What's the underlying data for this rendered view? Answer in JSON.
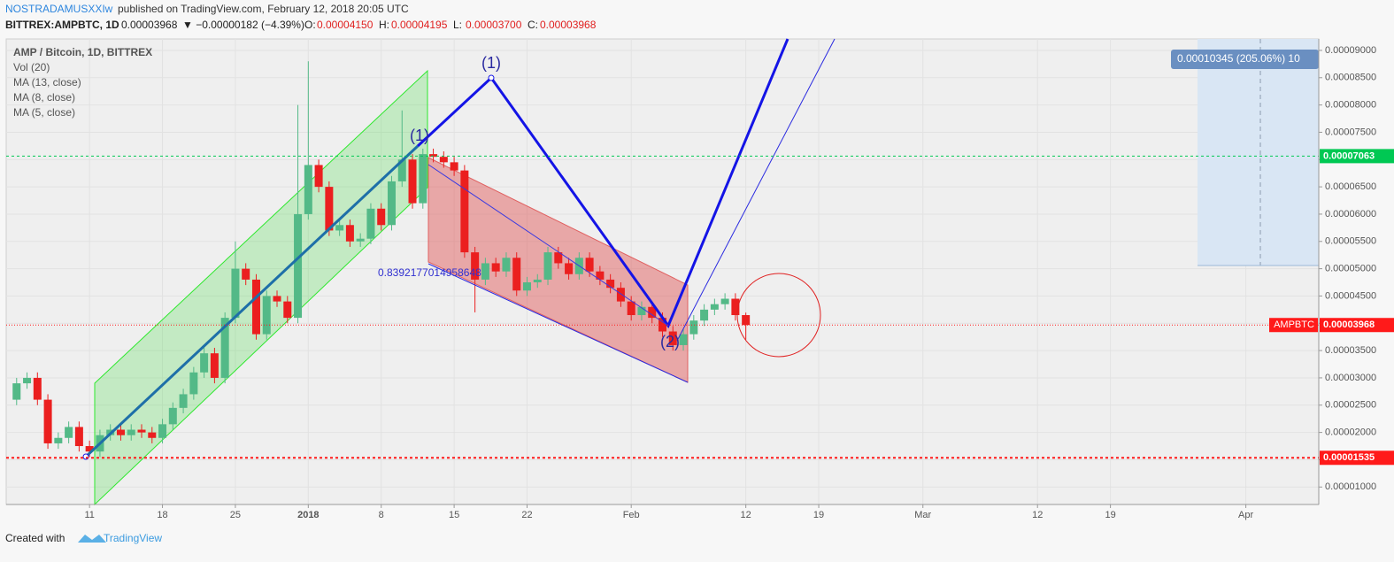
{
  "chart_data": {
    "type": "candlestick",
    "header": {
      "author": "NOSTRADAMUSXXIw",
      "published": "published on TradingView.com, February 12, 2018 20:05 UTC",
      "symbol": "BITTREX:AMPBTC, 1D",
      "last": "0.00003968",
      "change": "▼ −0.00000182 (−4.39%)",
      "ohlc": [
        {
          "label": "O:",
          "value": "0.00004150"
        },
        {
          "label": "H:",
          "value": "0.00004195"
        },
        {
          "label": "L:",
          "value": "0.00003700"
        },
        {
          "label": "C:",
          "value": "0.00003968"
        }
      ]
    },
    "legend": [
      "AMP / Bitcoin, 1D, BITTREX",
      "Vol (20)",
      "MA (13, close)",
      "MA (8, close)",
      "MA (5, close)"
    ],
    "annotations": {
      "wave_labels": [
        "(1)",
        "(1)",
        "(2)"
      ],
      "fib_ratio": "0.8392177014958648",
      "measure": "0.00010345 (205.06%) 10"
    },
    "footer": {
      "text": "Created with",
      "brand": "TradingView"
    },
    "up_color": "#53b987",
    "down_color": "#eb1f1f",
    "grid": true,
    "x": [
      "2017-12-04",
      "2017-12-05",
      "2017-12-06",
      "2017-12-07",
      "2017-12-08",
      "2017-12-09",
      "2017-12-10",
      "2017-12-11",
      "2017-12-12",
      "2017-12-13",
      "2017-12-14",
      "2017-12-15",
      "2017-12-16",
      "2017-12-17",
      "2017-12-18",
      "2017-12-19",
      "2017-12-20",
      "2017-12-21",
      "2017-12-22",
      "2017-12-23",
      "2017-12-24",
      "2017-12-25",
      "2017-12-26",
      "2017-12-27",
      "2017-12-28",
      "2017-12-29",
      "2017-12-30",
      "2017-12-31",
      "2018-01-01",
      "2018-01-02",
      "2018-01-03",
      "2018-01-04",
      "2018-01-05",
      "2018-01-06",
      "2018-01-07",
      "2018-01-08",
      "2018-01-09",
      "2018-01-10",
      "2018-01-11",
      "2018-01-12",
      "2018-01-13",
      "2018-01-14",
      "2018-01-15",
      "2018-01-16",
      "2018-01-17",
      "2018-01-18",
      "2018-01-19",
      "2018-01-20",
      "2018-01-21",
      "2018-01-22",
      "2018-01-23",
      "2018-01-24",
      "2018-01-25",
      "2018-01-26",
      "2018-01-27",
      "2018-01-28",
      "2018-01-29",
      "2018-01-30",
      "2018-01-31",
      "2018-02-01",
      "2018-02-02",
      "2018-02-03",
      "2018-02-04",
      "2018-02-05",
      "2018-02-06",
      "2018-02-07",
      "2018-02-08",
      "2018-02-09",
      "2018-02-10",
      "2018-02-11",
      "2018-02-12"
    ],
    "open": [
      2.6e-05,
      2.9e-05,
      3e-05,
      2.6e-05,
      1.8e-05,
      1.9e-05,
      2.1e-05,
      1.75e-05,
      1.65e-05,
      1.95e-05,
      2.05e-05,
      1.95e-05,
      2.05e-05,
      2e-05,
      1.9e-05,
      2.15e-05,
      2.45e-05,
      2.7e-05,
      3.1e-05,
      3.45e-05,
      3e-05,
      4.1e-05,
      5e-05,
      4.8e-05,
      3.8e-05,
      4.5e-05,
      4.4e-05,
      4.1e-05,
      6e-05,
      6.9e-05,
      6.5e-05,
      5.7e-05,
      5.8e-05,
      5.5e-05,
      5.55e-05,
      6.1e-05,
      5.8e-05,
      6.6e-05,
      7e-05,
      6.2e-05,
      7.1e-05,
      7.05e-05,
      6.95e-05,
      6.8e-05,
      5.3e-05,
      4.8e-05,
      5.1e-05,
      4.95e-05,
      5.2e-05,
      4.6e-05,
      4.75e-05,
      4.8e-05,
      5.3e-05,
      5.1e-05,
      4.9e-05,
      5.2e-05,
      4.95e-05,
      4.8e-05,
      4.65e-05,
      4.4e-05,
      4.15e-05,
      4.3e-05,
      4.1e-05,
      3.85e-05,
      3.6e-05,
      3.8e-05,
      4.05e-05,
      4.25e-05,
      4.35e-05,
      4.45e-05,
      4.15e-05
    ],
    "high": [
      3e-05,
      3.1e-05,
      3.1e-05,
      2.7e-05,
      2e-05,
      2.2e-05,
      2.2e-05,
      1.85e-05,
      2.05e-05,
      2.15e-05,
      2.15e-05,
      2.15e-05,
      2.15e-05,
      2.1e-05,
      2.25e-05,
      2.55e-05,
      2.8e-05,
      3.2e-05,
      3.55e-05,
      3.55e-05,
      4.2e-05,
      5.5e-05,
      5.1e-05,
      4.9e-05,
      4.6e-05,
      4.6e-05,
      4.5e-05,
      8e-05,
      8.8e-05,
      7e-05,
      6.6e-05,
      5.9e-05,
      5.9e-05,
      5.65e-05,
      6.2e-05,
      6.2e-05,
      6.7e-05,
      7.9e-05,
      7.1e-05,
      7.2e-05,
      7.2e-05,
      7.15e-05,
      7.05e-05,
      6.9e-05,
      5.4e-05,
      5.2e-05,
      5.2e-05,
      5.3e-05,
      5.3e-05,
      4.85e-05,
      4.9e-05,
      5.4e-05,
      5.4e-05,
      5.2e-05,
      5.3e-05,
      5.3e-05,
      5.05e-05,
      4.9e-05,
      4.75e-05,
      4.5e-05,
      4.4e-05,
      4.4e-05,
      4.2e-05,
      3.95e-05,
      3.9e-05,
      4.15e-05,
      4.35e-05,
      4.45e-05,
      4.55e-05,
      4.55e-05,
      4.195e-05
    ],
    "low": [
      2.5e-05,
      2.8e-05,
      2.5e-05,
      1.7e-05,
      1.7e-05,
      1.8e-05,
      1.65e-05,
      1.55e-05,
      1.55e-05,
      1.85e-05,
      1.85e-05,
      1.85e-05,
      1.9e-05,
      1.8e-05,
      1.8e-05,
      2.05e-05,
      2.35e-05,
      2.6e-05,
      3e-05,
      2.9e-05,
      2.9e-05,
      4e-05,
      4.7e-05,
      3.7e-05,
      3.7e-05,
      4.3e-05,
      4e-05,
      4e-05,
      5.9e-05,
      6.4e-05,
      5.6e-05,
      5.6e-05,
      5.4e-05,
      5.4e-05,
      5.45e-05,
      5.7e-05,
      5.7e-05,
      6.5e-05,
      6.1e-05,
      6.1e-05,
      6.95e-05,
      6.85e-05,
      6.7e-05,
      5.2e-05,
      4.2e-05,
      4.7e-05,
      4.85e-05,
      4.85e-05,
      4.5e-05,
      4.5e-05,
      4.65e-05,
      4.7e-05,
      5e-05,
      4.8e-05,
      4.8e-05,
      4.85e-05,
      4.7e-05,
      4.55e-05,
      4.3e-05,
      4.05e-05,
      4.05e-05,
      4e-05,
      3.75e-05,
      3.5e-05,
      3.5e-05,
      3.7e-05,
      3.95e-05,
      4.15e-05,
      4.25e-05,
      4.05e-05,
      3.7e-05
    ],
    "close": [
      2.9e-05,
      3e-05,
      2.6e-05,
      1.8e-05,
      1.9e-05,
      2.1e-05,
      1.75e-05,
      1.65e-05,
      1.95e-05,
      2.05e-05,
      1.95e-05,
      2.05e-05,
      2e-05,
      1.9e-05,
      2.15e-05,
      2.45e-05,
      2.7e-05,
      3.1e-05,
      3.45e-05,
      3e-05,
      4.1e-05,
      5e-05,
      4.8e-05,
      3.8e-05,
      4.5e-05,
      4.4e-05,
      4.1e-05,
      6e-05,
      6.9e-05,
      6.5e-05,
      5.7e-05,
      5.8e-05,
      5.5e-05,
      5.55e-05,
      6.1e-05,
      5.8e-05,
      6.6e-05,
      7e-05,
      6.2e-05,
      7.1e-05,
      7.05e-05,
      6.95e-05,
      6.8e-05,
      5.3e-05,
      4.8e-05,
      5.1e-05,
      4.95e-05,
      5.2e-05,
      4.6e-05,
      4.75e-05,
      4.8e-05,
      5.3e-05,
      5.1e-05,
      4.9e-05,
      5.2e-05,
      4.95e-05,
      4.8e-05,
      4.65e-05,
      4.4e-05,
      4.15e-05,
      4.3e-05,
      4.1e-05,
      3.85e-05,
      3.6e-05,
      3.8e-05,
      4.05e-05,
      4.25e-05,
      4.35e-05,
      4.45e-05,
      4.15e-05,
      3.968e-05
    ],
    "xlim": [
      "2017-12-03",
      "2018-04-08"
    ],
    "xticks": [
      {
        "value": "2017-12-11",
        "label": "11"
      },
      {
        "value": "2017-12-18",
        "label": "18"
      },
      {
        "value": "2017-12-25",
        "label": "25"
      },
      {
        "value": "2018-01-01",
        "label": "2018"
      },
      {
        "value": "2018-01-08",
        "label": "8"
      },
      {
        "value": "2018-01-15",
        "label": "15"
      },
      {
        "value": "2018-01-22",
        "label": "22"
      },
      {
        "value": "2018-02-01",
        "label": "Feb"
      },
      {
        "value": "2018-02-12",
        "label": "12"
      },
      {
        "value": "2018-02-19",
        "label": "19"
      },
      {
        "value": "2018-03-01",
        "label": "Mar"
      },
      {
        "value": "2018-03-12",
        "label": "12"
      },
      {
        "value": "2018-03-19",
        "label": "19"
      },
      {
        "value": "2018-04-01",
        "label": "Apr"
      }
    ],
    "ylim": [
      6.8e-06,
      9.21e-05
    ],
    "yticks": [
      {
        "value": 1e-05,
        "label": "0.00001000"
      },
      {
        "value": 1.5e-05,
        "label": "0.00001500"
      },
      {
        "value": 2e-05,
        "label": "0.00002000"
      },
      {
        "value": 2.5e-05,
        "label": "0.00002500"
      },
      {
        "value": 3e-05,
        "label": "0.00003000"
      },
      {
        "value": 3.5e-05,
        "label": "0.00003500"
      },
      {
        "value": 4e-05,
        "label": "0.00004000"
      },
      {
        "value": 4.5e-05,
        "label": "0.00004500"
      },
      {
        "value": 5e-05,
        "label": "0.00005000"
      },
      {
        "value": 5.5e-05,
        "label": "0.00005500"
      },
      {
        "value": 6e-05,
        "label": "0.00006000"
      },
      {
        "value": 6.5e-05,
        "label": "0.00006500"
      },
      {
        "value": 7e-05,
        "label": "0.00007000"
      },
      {
        "value": 7.5e-05,
        "label": "0.00007500"
      },
      {
        "value": 8e-05,
        "label": "0.00008000"
      },
      {
        "value": 8.5e-05,
        "label": "0.00008500"
      },
      {
        "value": 9e-05,
        "label": "0.00009000"
      }
    ],
    "price_lines": [
      {
        "value": 7.063e-05,
        "label": "0.00007063",
        "color": "#00c853"
      },
      {
        "value": 3.968e-05,
        "label": "0.00003968",
        "name": "AMPBTC",
        "color": "#ff1a1a"
      },
      {
        "value": 1.535e-05,
        "label": "0.00001535",
        "color": "#ff1a1a"
      }
    ]
  }
}
